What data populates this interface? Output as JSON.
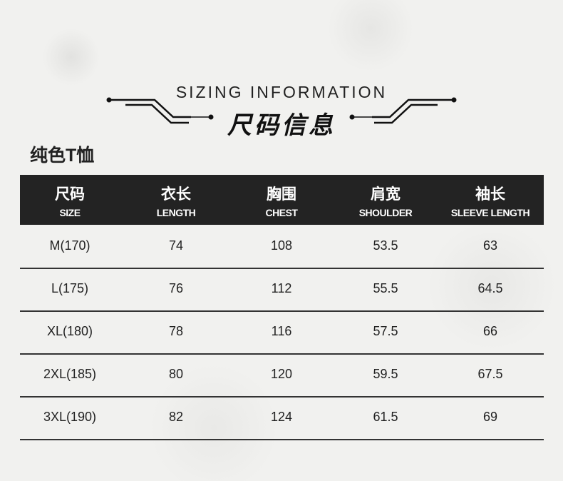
{
  "heading": {
    "en": "SIZING INFORMATION",
    "cn": "尺码信息"
  },
  "subtitle": "纯色T恤",
  "table": {
    "columns": [
      {
        "cn": "尺码",
        "en": "SIZE"
      },
      {
        "cn": "衣长",
        "en": "LENGTH"
      },
      {
        "cn": "胸围",
        "en": "CHEST"
      },
      {
        "cn": "肩宽",
        "en": "SHOULDER"
      },
      {
        "cn": "袖长",
        "en": "SLEEVE LENGTH"
      }
    ],
    "rows": [
      [
        "M(170)",
        "74",
        "108",
        "53.5",
        "63"
      ],
      [
        "L(175)",
        "76",
        "112",
        "55.5",
        "64.5"
      ],
      [
        "XL(180)",
        "78",
        "116",
        "57.5",
        "66"
      ],
      [
        "2XL(185)",
        "80",
        "120",
        "59.5",
        "67.5"
      ],
      [
        "3XL(190)",
        "82",
        "124",
        "61.5",
        "69"
      ]
    ]
  },
  "colors": {
    "header_bg": "#232323",
    "background": "#f1f1ef"
  }
}
